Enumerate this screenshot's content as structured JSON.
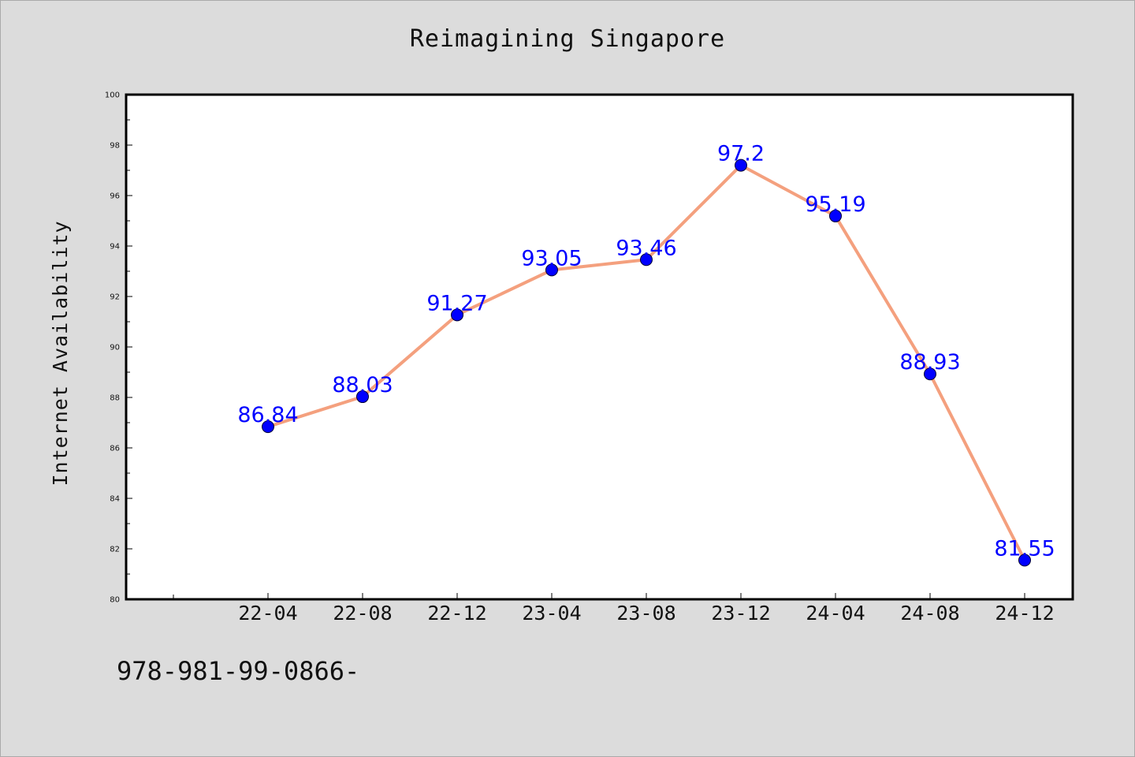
{
  "page": {
    "background": "#dcdcdc",
    "footer_text": "978-981-99-0866-"
  },
  "chart_data": {
    "type": "line",
    "title": "Reimagining Singapore",
    "xlabel": "",
    "ylabel": "Internet Availability",
    "categories": [
      "22-04",
      "22-08",
      "22-12",
      "23-04",
      "23-08",
      "23-12",
      "24-04",
      "24-08",
      "24-12"
    ],
    "series": [
      {
        "values": [
          86.84,
          88.03,
          91.27,
          93.05,
          93.46,
          97.2,
          95.19,
          88.93,
          81.55
        ],
        "labels": [
          "86.84",
          "88.03",
          "91.27",
          "93.05",
          "93.46",
          "97.2",
          "95.19",
          "88.93",
          "81.55"
        ],
        "line_color": "#f4a07e",
        "marker_color": "#0000ff",
        "label_color": "#0000ff"
      }
    ],
    "ylim": [
      80,
      100
    ],
    "yticks": [
      80,
      82,
      84,
      86,
      88,
      90,
      92,
      94,
      96,
      98,
      100
    ],
    "ytick_labels": [
      "80",
      "82",
      "84",
      "86",
      "88",
      "90",
      "92",
      "94",
      "96",
      "98",
      "100"
    ],
    "grid": false,
    "legend": "none",
    "plot_background": "#ffffff",
    "axis_color": "#000000"
  }
}
